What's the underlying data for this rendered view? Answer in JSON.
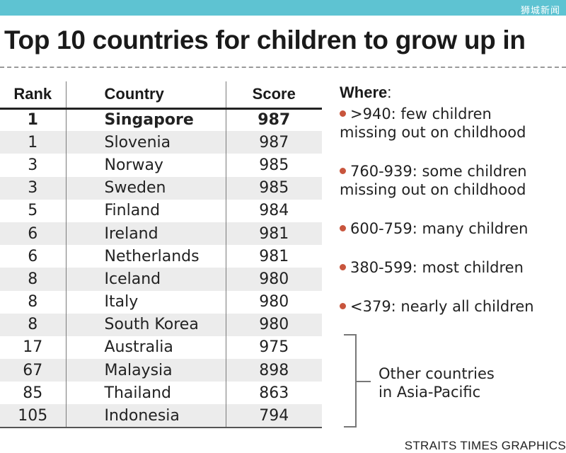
{
  "header": {
    "watermark": "狮城新闻"
  },
  "title": "Top 10 countries for children to grow up in",
  "chart_data": {
    "type": "table",
    "columns": [
      "Rank",
      "Country",
      "Score"
    ],
    "rows": [
      {
        "rank": "1",
        "country": "Singapore",
        "score": "987",
        "bold": true
      },
      {
        "rank": "1",
        "country": "Slovenia",
        "score": "987"
      },
      {
        "rank": "3",
        "country": "Norway",
        "score": "985"
      },
      {
        "rank": "3",
        "country": "Sweden",
        "score": "985"
      },
      {
        "rank": "5",
        "country": "Finland",
        "score": "984"
      },
      {
        "rank": "6",
        "country": "Ireland",
        "score": "981"
      },
      {
        "rank": "6",
        "country": "Netherlands",
        "score": "981"
      },
      {
        "rank": "8",
        "country": "Iceland",
        "score": "980"
      },
      {
        "rank": "8",
        "country": "Italy",
        "score": "980"
      },
      {
        "rank": "8",
        "country": "South Korea",
        "score": "980"
      },
      {
        "rank": "17",
        "country": "Australia",
        "score": "975"
      },
      {
        "rank": "67",
        "country": "Malaysia",
        "score": "898"
      },
      {
        "rank": "85",
        "country": "Thailand",
        "score": "863"
      },
      {
        "rank": "105",
        "country": "Indonesia",
        "score": "794"
      }
    ]
  },
  "legend": {
    "heading": "Where",
    "colon": ":",
    "dot_color": "#c8553d",
    "items": [
      {
        "line1": ">940: few children",
        "line2": "missing out on childhood"
      },
      {
        "line1": "760-939: some children",
        "line2": "missing out on childhood"
      },
      {
        "line1": "600-759: many children",
        "line2": ""
      },
      {
        "line1": "380-599: most children",
        "line2": ""
      },
      {
        "line1": "<379: nearly all children",
        "line2": ""
      }
    ]
  },
  "note": {
    "line1": "Other countries",
    "line2": "in Asia-Pacific"
  },
  "credit": "STRAITS TIMES GRAPHICS"
}
